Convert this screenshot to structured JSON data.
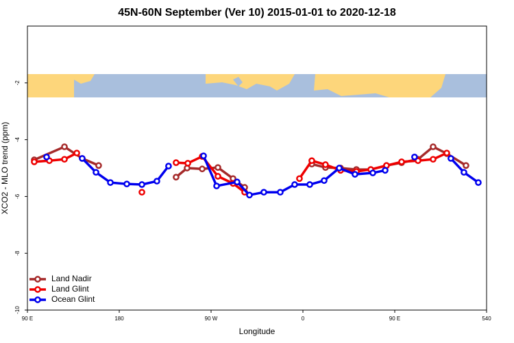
{
  "chart_data": {
    "type": "line",
    "title": "45N-60N September (Ver 10)   2015-01-01 to 2020-12-18",
    "xlabel": "Longitude",
    "ylabel": "XCO2 - MLO trend (ppm)",
    "xlim": [
      90,
      540
    ],
    "xticks": [
      {
        "value": 90,
        "label": "90 E"
      },
      180,
      {
        "value": 270,
        "label": "90 W"
      },
      {
        "value": 360,
        "label": "0"
      },
      {
        "value": 450,
        "label": "90 E"
      },
      540
    ],
    "ylim": [
      -10,
      0
    ],
    "yticks": [
      -10,
      -8,
      -6,
      -4,
      -2
    ],
    "legend": "bottom-left",
    "series": [
      {
        "name": "Land Nadir",
        "color": "#a52a2a",
        "x": [
          96.7,
          126.3,
          143.7,
          159.8,
          null,
          235.7,
          246.5,
          261.3,
          276.7,
          291.5,
          302.9,
          null,
          368.7,
          382.1,
          396.9,
          412.4,
          426.5,
          441.9,
          456.7,
          472.8,
          487.6,
          501.0,
          519.8
        ],
        "values": [
          -4.71,
          -4.25,
          -4.66,
          -4.91,
          null,
          -5.32,
          -5.0,
          -5.03,
          -4.98,
          -5.37,
          -5.68,
          null,
          -4.86,
          -4.98,
          -5.0,
          -5.05,
          -5.05,
          -4.91,
          -4.81,
          -4.69,
          -4.25,
          -4.49,
          -4.91
        ]
      },
      {
        "name": "Land Glint",
        "color": "#ee0000",
        "x": [
          96.7,
          111.5,
          126.3,
          138.4,
          null,
          202.2,
          null,
          235.7,
          247.2,
          261.3,
          276.7,
          291.5,
          302.9,
          null,
          356.6,
          368.7,
          382.1,
          396.9,
          412.4,
          426.5,
          441.9,
          456.7,
          472.8,
          487.6,
          501.0
        ],
        "values": [
          -4.78,
          -4.74,
          -4.69,
          -4.47,
          null,
          -5.85,
          null,
          -4.81,
          -4.83,
          -4.59,
          -5.29,
          -5.54,
          -5.85,
          null,
          -5.37,
          -4.74,
          -4.88,
          -5.08,
          -5.12,
          -5.05,
          -4.91,
          -4.78,
          -4.74,
          -4.69,
          -4.47
        ]
      },
      {
        "name": "Ocean Glint",
        "color": "#0000ee",
        "x": [
          108.8,
          null,
          143.7,
          157.2,
          171.3,
          187.4,
          202.2,
          216.9,
          228.3,
          null,
          262.6,
          275.4,
          295.5,
          307.6,
          321.7,
          337.8,
          351.9,
          366.7,
          380.8,
          395.6,
          411.0,
          428.5,
          440.6,
          null,
          469.4,
          null,
          505.0,
          517.8,
          531.9
        ],
        "values": [
          -4.61,
          null,
          -4.66,
          -5.15,
          -5.51,
          -5.56,
          -5.58,
          -5.46,
          -4.93,
          null,
          -4.57,
          -5.63,
          -5.49,
          -5.95,
          -5.85,
          -5.85,
          -5.58,
          -5.58,
          -5.44,
          -5.0,
          -5.22,
          -5.17,
          -5.08,
          null,
          -4.61,
          null,
          -4.66,
          -5.15,
          -5.51
        ]
      }
    ]
  }
}
